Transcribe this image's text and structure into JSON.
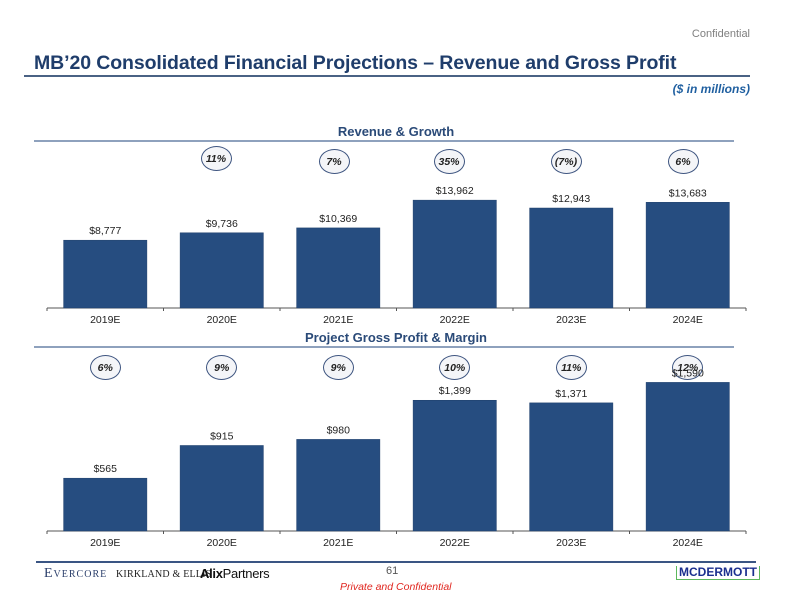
{
  "header": {
    "confidential_label": "Confidential",
    "title": "MB’20 Consolidated Financial Projections – Revenue and Gross Profit",
    "units_note": "($ in millions)"
  },
  "footer": {
    "logos": {
      "evercore": "Evercore",
      "kirkland": "KIRKLAND & ELLIS",
      "alix_bold": "Alix",
      "alix_rest": "Partners",
      "mcdermott": "MCDERMOTT"
    },
    "page_number": "61",
    "private_label": "Private and Confidential"
  },
  "colors": {
    "bar": "#264d80",
    "title": "#1f3d6b",
    "private_label": "#e0261f"
  },
  "chart_data": [
    {
      "type": "bar",
      "title": "Revenue & Growth",
      "categories": [
        "2019E",
        "2020E",
        "2021E",
        "2022E",
        "2023E",
        "2024E"
      ],
      "values": [
        8777,
        9736,
        10369,
        13962,
        12943,
        13683
      ],
      "value_labels": [
        "$8,777",
        "$9,736",
        "$10,369",
        "$13,962",
        "$12,943",
        "$13,683"
      ],
      "annotation_name": "growth",
      "annotations": [
        "",
        "11%",
        "7%",
        "35%",
        "(7%)",
        "6%"
      ],
      "xlabel": "",
      "ylabel": "",
      "ylim": [
        0,
        20000
      ],
      "grid": false,
      "legend": "none"
    },
    {
      "type": "bar",
      "title": "Project Gross Profit & Margin",
      "categories": [
        "2019E",
        "2020E",
        "2021E",
        "2022E",
        "2023E",
        "2024E"
      ],
      "values": [
        565,
        915,
        980,
        1399,
        1371,
        1590
      ],
      "value_labels": [
        "$565",
        "$915",
        "$980",
        "$1,399",
        "$1,371",
        "$1,590"
      ],
      "annotation_name": "margin",
      "annotations": [
        "6%",
        "9%",
        "9%",
        "10%",
        "11%",
        "12%"
      ],
      "xlabel": "",
      "ylabel": "",
      "ylim": [
        0,
        2600
      ],
      "grid": false,
      "legend": "none"
    }
  ]
}
